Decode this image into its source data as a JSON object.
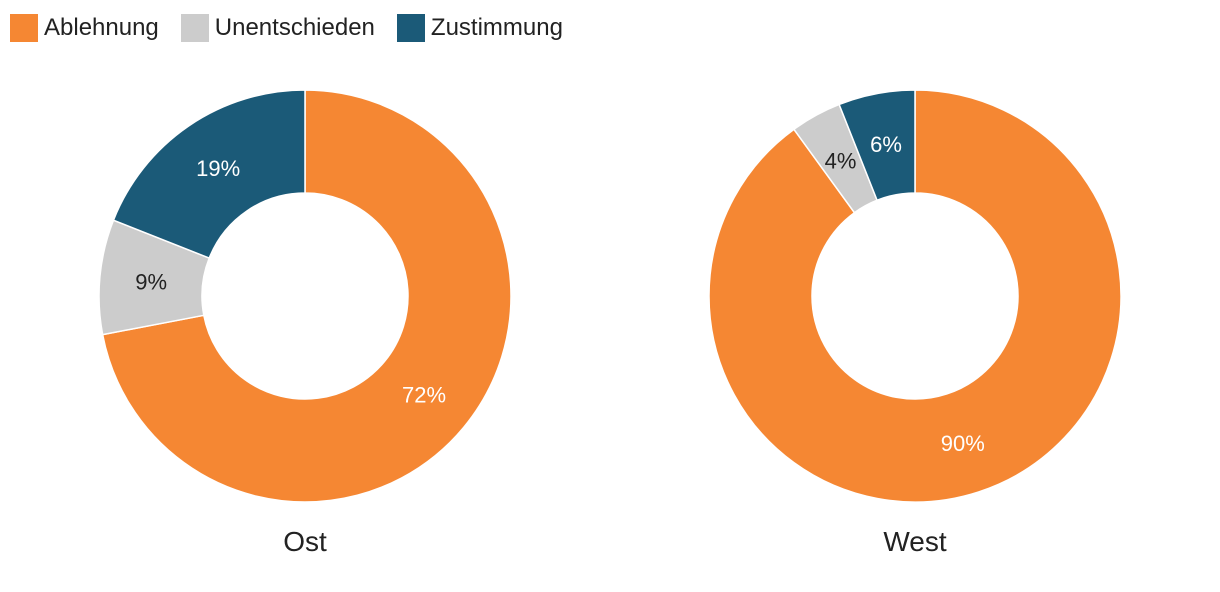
{
  "legend": [
    {
      "label": "Ablehnung",
      "color": "#F58733"
    },
    {
      "label": "Unentschieden",
      "color": "#CCCCCC"
    },
    {
      "label": "Zustimmung",
      "color": "#1B5A78"
    }
  ],
  "chart_data": [
    {
      "type": "pie",
      "title": "Ost",
      "categories": [
        "Ablehnung",
        "Unentschieden",
        "Zustimmung"
      ],
      "values": [
        72,
        9,
        19
      ],
      "labels": [
        "72%",
        "9%",
        "19%"
      ],
      "colors": [
        "#F58733",
        "#CCCCCC",
        "#1B5A78"
      ],
      "label_colors": [
        "#ffffff",
        "#222222",
        "#ffffff"
      ],
      "legend": "top-left"
    },
    {
      "type": "pie",
      "title": "West",
      "categories": [
        "Ablehnung",
        "Unentschieden",
        "Zustimmung"
      ],
      "values": [
        90,
        4,
        6
      ],
      "labels": [
        "90%",
        "4%",
        "6%"
      ],
      "colors": [
        "#F58733",
        "#CCCCCC",
        "#1B5A78"
      ],
      "label_colors": [
        "#ffffff",
        "#222222",
        "#ffffff"
      ],
      "legend": "top-left"
    }
  ]
}
